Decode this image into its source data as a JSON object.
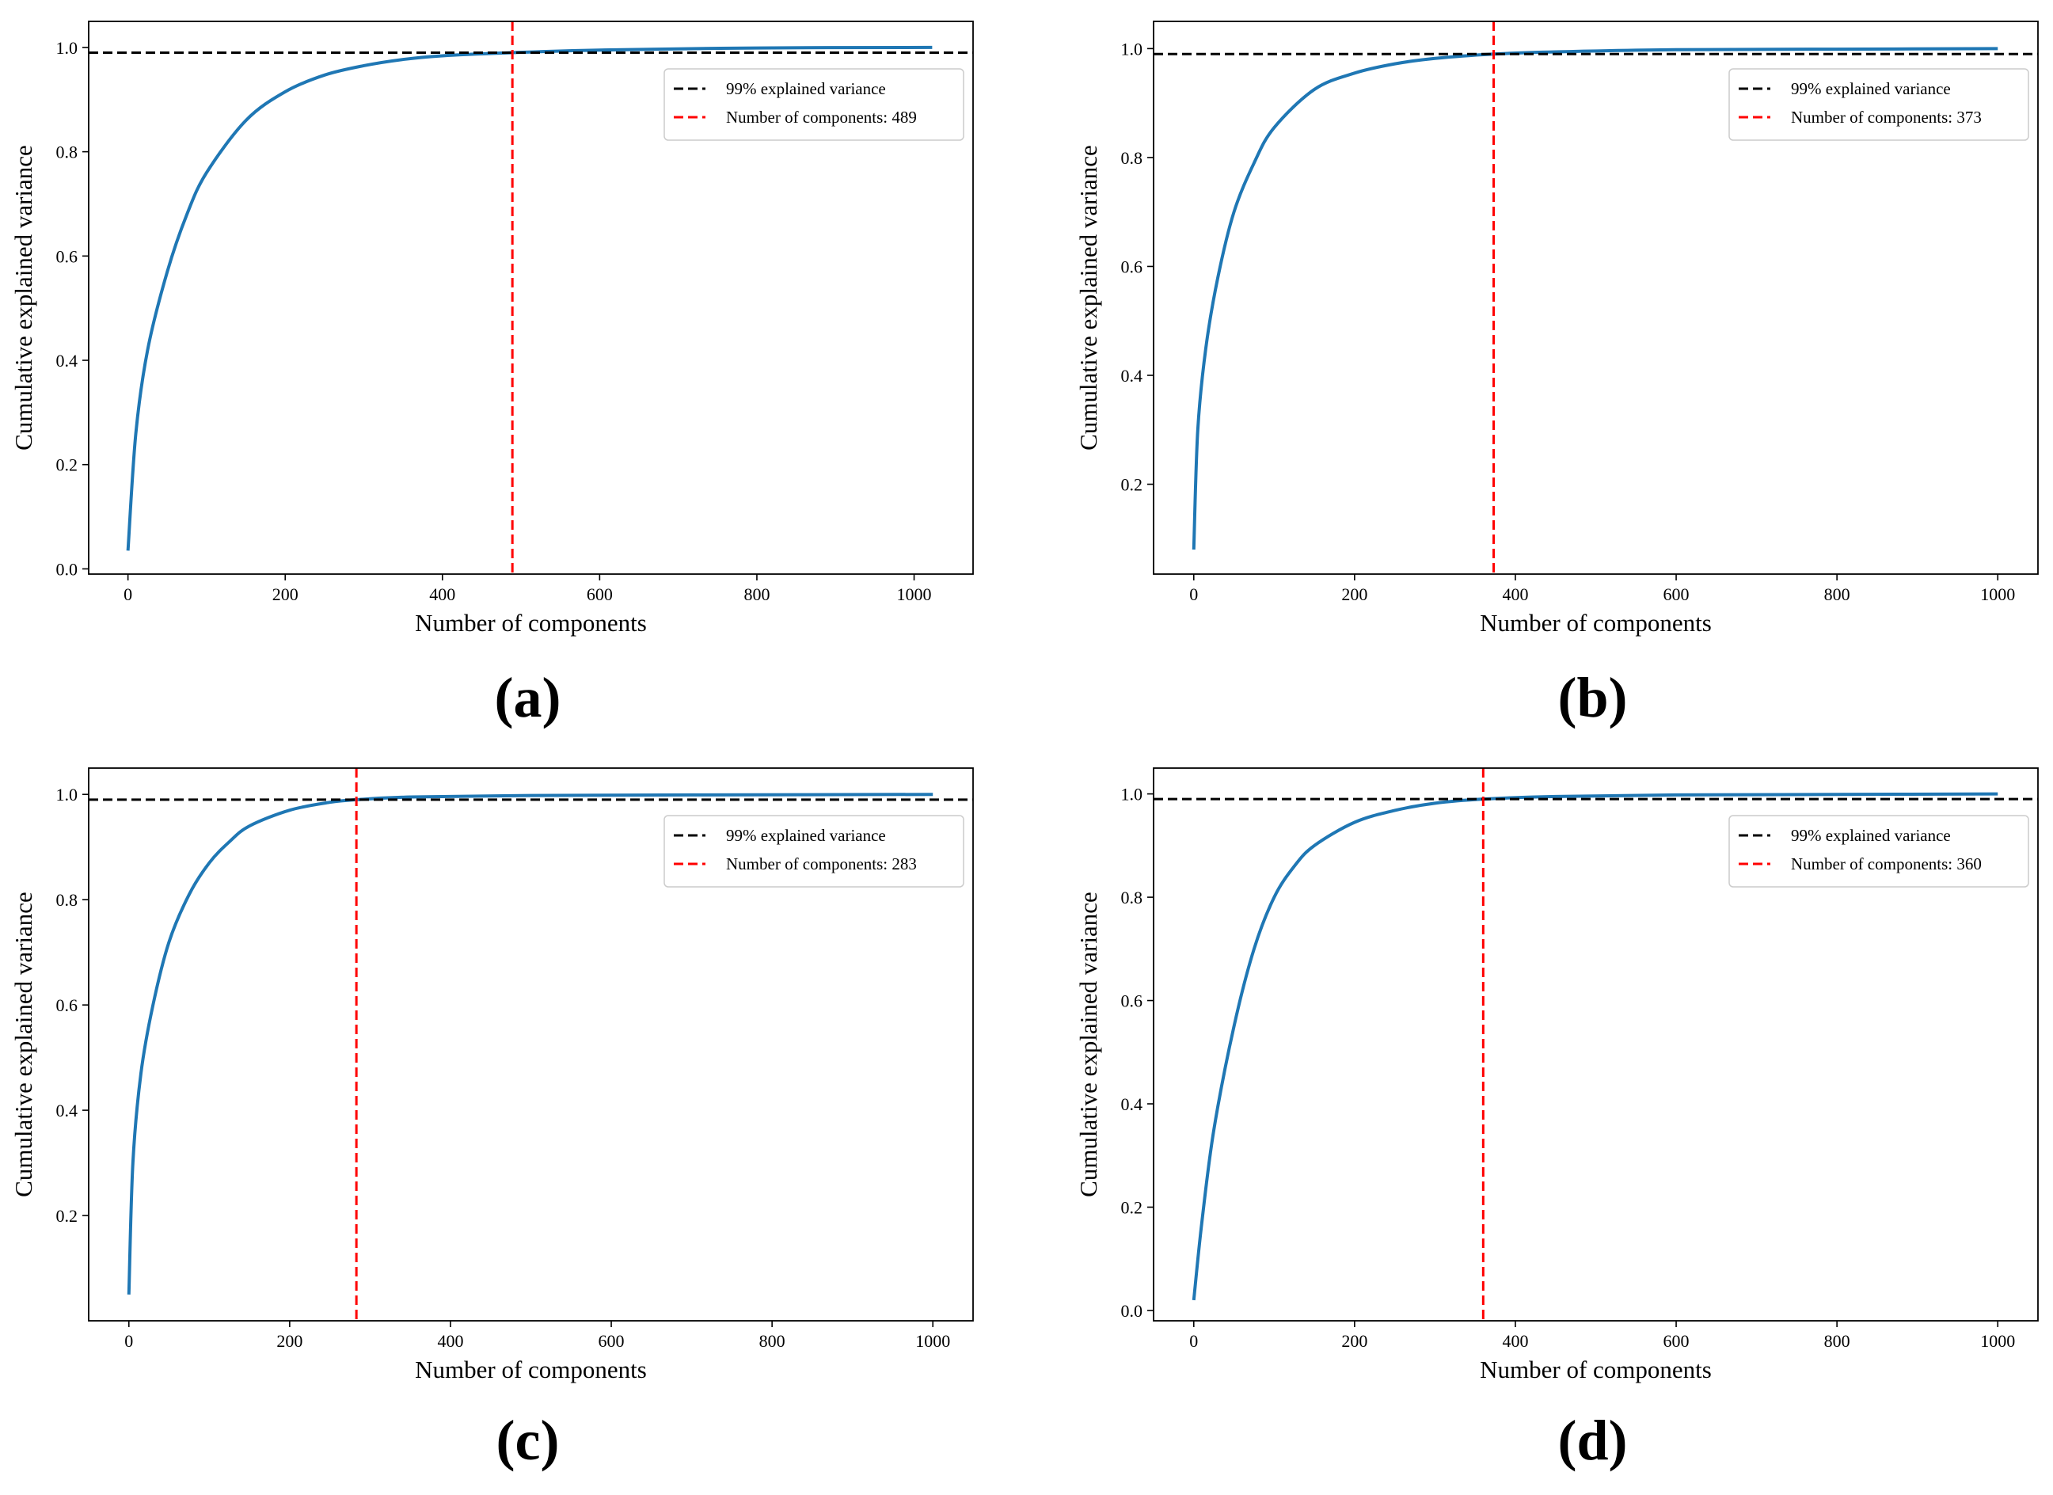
{
  "figure": {
    "colors": {
      "curve": "#1f77b4",
      "threshold": "#000000",
      "components": "#ff0000",
      "axis": "#000000"
    }
  },
  "chart_data": [
    {
      "type": "line",
      "panel_label": "(a)",
      "xlabel": "Number of components",
      "ylabel": "Cumulative explained variance",
      "xlim": [
        -50,
        1075
      ],
      "ylim": [
        -0.01,
        1.05
      ],
      "xticks": [
        0,
        200,
        400,
        600,
        800,
        1000
      ],
      "yticks": [
        0.0,
        0.2,
        0.4,
        0.6,
        0.8,
        1.0
      ],
      "ytick_labels": [
        "0.0",
        "0.2",
        "0.4",
        "0.6",
        "0.8",
        "1.0"
      ],
      "series": [
        {
          "name": "Cumulative explained variance",
          "x": [
            0,
            10,
            25,
            50,
            75,
            100,
            150,
            200,
            250,
            300,
            350,
            400,
            489,
            600,
            800,
            1023
          ],
          "values": [
            0.035,
            0.26,
            0.42,
            0.57,
            0.68,
            0.76,
            0.86,
            0.915,
            0.947,
            0.965,
            0.977,
            0.984,
            0.99,
            0.995,
            0.999,
            1.0
          ]
        }
      ],
      "threshold": {
        "value": 0.99,
        "label": "99% explained variance"
      },
      "components": {
        "value": 489,
        "label": "Number of components: 489"
      }
    },
    {
      "type": "line",
      "panel_label": "(b)",
      "xlabel": "Number of components",
      "ylabel": "Cumulative explained variance",
      "xlim": [
        -50,
        1050
      ],
      "ylim": [
        0.035,
        1.05
      ],
      "xticks": [
        0,
        200,
        400,
        600,
        800,
        1000
      ],
      "yticks": [
        0.2,
        0.4,
        0.6,
        0.8,
        1.0
      ],
      "ytick_labels": [
        "0.2",
        "0.4",
        "0.6",
        "0.8",
        "1.0"
      ],
      "series": [
        {
          "name": "Cumulative explained variance",
          "x": [
            0,
            5,
            15,
            30,
            50,
            75,
            100,
            150,
            200,
            250,
            300,
            373,
            450,
            600,
            800,
            1000
          ],
          "values": [
            0.08,
            0.3,
            0.45,
            0.58,
            0.7,
            0.79,
            0.855,
            0.925,
            0.955,
            0.972,
            0.982,
            0.99,
            0.994,
            0.998,
            0.999,
            1.0
          ]
        }
      ],
      "threshold": {
        "value": 0.99,
        "label": "99% explained variance"
      },
      "components": {
        "value": 373,
        "label": "Number of components: 373"
      }
    },
    {
      "type": "line",
      "panel_label": "(c)",
      "xlabel": "Number of components",
      "ylabel": "Cumulative explained variance",
      "xlim": [
        -50,
        1050
      ],
      "ylim": [
        0.0,
        1.05
      ],
      "xticks": [
        0,
        200,
        400,
        600,
        800,
        1000
      ],
      "yticks": [
        0.2,
        0.4,
        0.6,
        0.8,
        1.0
      ],
      "ytick_labels": [
        "0.2",
        "0.4",
        "0.6",
        "0.8",
        "1.0"
      ],
      "series": [
        {
          "name": "Cumulative explained variance",
          "x": [
            0,
            5,
            15,
            30,
            50,
            75,
            100,
            125,
            150,
            200,
            250,
            283,
            350,
            500,
            700,
            1000
          ],
          "values": [
            0.05,
            0.3,
            0.47,
            0.6,
            0.72,
            0.81,
            0.87,
            0.91,
            0.94,
            0.97,
            0.985,
            0.99,
            0.995,
            0.998,
            0.999,
            1.0
          ]
        }
      ],
      "threshold": {
        "value": 0.99,
        "label": "99% explained variance"
      },
      "components": {
        "value": 283,
        "label": "Number of components: 283"
      }
    },
    {
      "type": "line",
      "panel_label": "(d)",
      "xlabel": "Number of components",
      "ylabel": "Cumulative explained variance",
      "xlim": [
        -50,
        1050
      ],
      "ylim": [
        -0.02,
        1.05
      ],
      "xticks": [
        0,
        200,
        400,
        600,
        800,
        1000
      ],
      "yticks": [
        0.0,
        0.2,
        0.4,
        0.6,
        0.8,
        1.0
      ],
      "ytick_labels": [
        "0.0",
        "0.2",
        "0.4",
        "0.6",
        "0.8",
        "1.0"
      ],
      "series": [
        {
          "name": "Cumulative explained variance",
          "x": [
            0,
            10,
            25,
            50,
            75,
            100,
            125,
            150,
            200,
            250,
            300,
            360,
            450,
            600,
            800,
            1000
          ],
          "values": [
            0.02,
            0.17,
            0.35,
            0.55,
            0.7,
            0.8,
            0.86,
            0.9,
            0.945,
            0.968,
            0.982,
            0.99,
            0.995,
            0.998,
            0.999,
            1.0
          ]
        }
      ],
      "threshold": {
        "value": 0.99,
        "label": "99% explained variance"
      },
      "components": {
        "value": 360,
        "label": "Number of components: 360"
      }
    }
  ]
}
